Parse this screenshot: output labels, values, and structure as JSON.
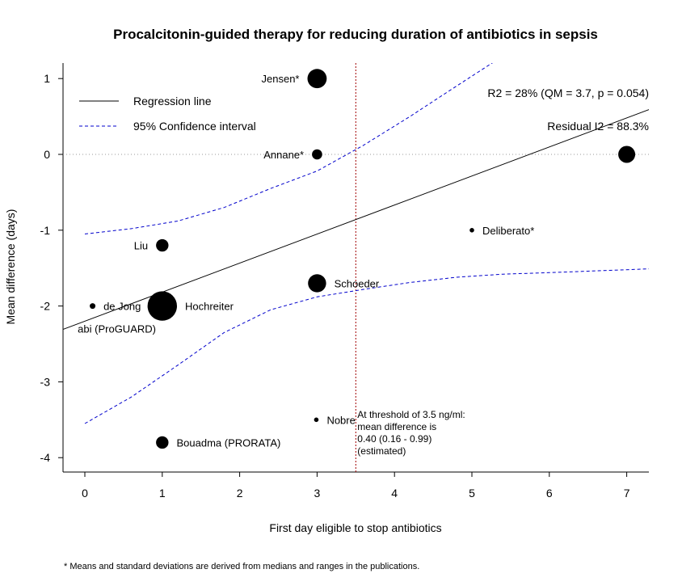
{
  "chart_data": {
    "type": "scatter",
    "title": "Procalcitonin-guided therapy for reducing duration of antibiotics in sepsis",
    "xlabel": "First day eligible to stop antibiotics",
    "ylabel": "Mean difference (days)",
    "xlim": [
      -0.3,
      7.3
    ],
    "ylim": [
      -4.2,
      1.2
    ],
    "x_ticks": [
      0,
      1,
      2,
      3,
      4,
      5,
      6,
      7
    ],
    "y_ticks": [
      1,
      0,
      -1,
      -2,
      -3,
      -4
    ],
    "grid": false,
    "legend_position": "top-left",
    "legend": [
      {
        "label": "Regression line",
        "style": "solid",
        "color": "#000000"
      },
      {
        "label": "95% Confidence interval",
        "style": "dashed",
        "color": "#0000cc"
      }
    ],
    "stats": {
      "r2_text": "R2 = 28% (QM = 3.7, p = 0.054)",
      "i2_text": "Residual I2 = 88.3%"
    },
    "points": [
      {
        "label": "Jensen*",
        "x": 3,
        "y": 1,
        "weight": 1.7,
        "label_side": "left"
      },
      {
        "label": "Annane*",
        "x": 3,
        "y": 0,
        "weight": 0.9,
        "label_side": "left"
      },
      {
        "label": "",
        "x": 7,
        "y": 0,
        "weight": 1.5,
        "label_side": "none"
      },
      {
        "label": "Deliberato*",
        "x": 5,
        "y": -1,
        "weight": 0.4,
        "label_side": "right"
      },
      {
        "label": "Liu",
        "x": 1,
        "y": -1.2,
        "weight": 1.1,
        "label_side": "left"
      },
      {
        "label": "Schoeder",
        "x": 3,
        "y": -1.7,
        "weight": 1.6,
        "label_side": "right"
      },
      {
        "label": "de Jong",
        "x": 0.1,
        "y": -2,
        "weight": 0.5,
        "label_side": "right"
      },
      {
        "label": "Hochreiter",
        "x": 1,
        "y": -2,
        "weight": 2.6,
        "label_side": "right"
      },
      {
        "label": "abi (ProGUARD)",
        "x": 0.1,
        "y": -2.3,
        "weight": 0,
        "label_side": "center"
      },
      {
        "label": "Nobre",
        "x": 2.99,
        "y": -3.5,
        "weight": 0.4,
        "label_side": "right"
      },
      {
        "label": "Bouadma (PRORATA)",
        "x": 1,
        "y": -3.8,
        "weight": 1.1,
        "label_side": "right"
      }
    ],
    "regression": {
      "intercept": -2.2,
      "slope": 0.383
    },
    "ci_upper": [
      [
        0,
        -1.05
      ],
      [
        0.6,
        -0.98
      ],
      [
        1.2,
        -0.88
      ],
      [
        1.8,
        -0.7
      ],
      [
        2.4,
        -0.45
      ],
      [
        3,
        -0.22
      ],
      [
        3.6,
        0.12
      ],
      [
        4.2,
        0.5
      ],
      [
        4.8,
        0.9
      ],
      [
        5.3,
        1.23
      ]
    ],
    "ci_lower": [
      [
        0,
        -3.55
      ],
      [
        0.6,
        -3.2
      ],
      [
        1.2,
        -2.78
      ],
      [
        1.8,
        -2.35
      ],
      [
        2.4,
        -2.05
      ],
      [
        3,
        -1.88
      ],
      [
        3.6,
        -1.78
      ],
      [
        4.2,
        -1.69
      ],
      [
        4.8,
        -1.62
      ],
      [
        5.4,
        -1.58
      ],
      [
        6,
        -1.56
      ],
      [
        7.3,
        -1.51
      ]
    ],
    "reference_lines": {
      "horizontal_y": 0,
      "vertical_x": 3.5
    },
    "threshold_annotation": [
      "At threshold of 3.5 ng/ml:",
      "mean difference is",
      "0.40 (0.16 - 0.99)",
      "(estimated)"
    ]
  },
  "footnote": "* Means and standard deviations are derived from medians and ranges in the publications."
}
